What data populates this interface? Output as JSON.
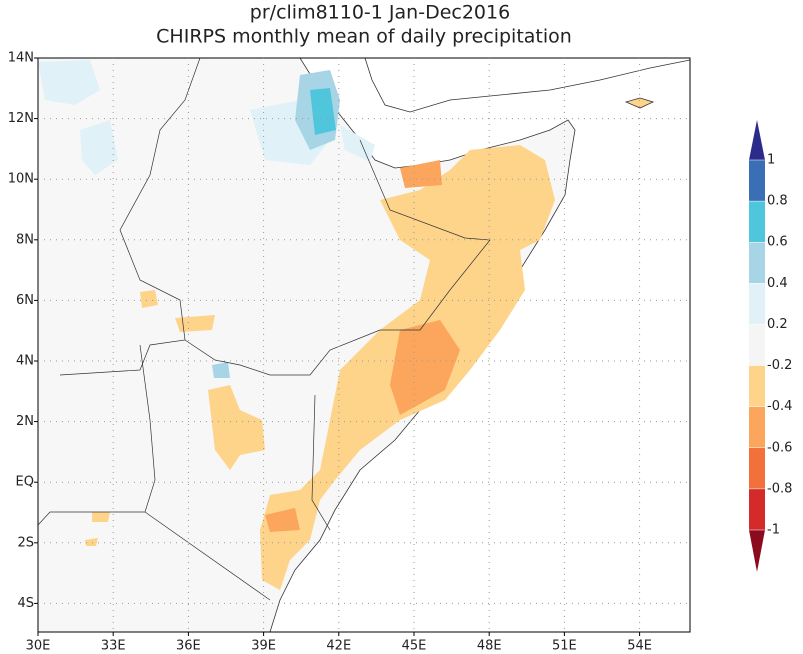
{
  "title": [
    "pr/clim8110-1 Jan-Dec2016",
    "CHIRPS monthly mean of daily precipitation"
  ],
  "map": {
    "x_ticks": [
      "30E",
      "33E",
      "36E",
      "39E",
      "42E",
      "45E",
      "48E",
      "51E",
      "54E"
    ],
    "y_ticks": [
      "14N",
      "12N",
      "10N",
      "8N",
      "6N",
      "4N",
      "2N",
      "EQ",
      "2S",
      "4S"
    ]
  },
  "colorbar": {
    "levels": [
      1,
      0.8,
      0.6,
      0.4,
      0.2,
      -0.2,
      -0.4,
      -0.6,
      -0.8,
      -1
    ],
    "colors": [
      "#2b2b8c",
      "#3b6fb5",
      "#4fc6dc",
      "#a7d5e6",
      "#e0f1f8",
      "#f5f5f5",
      "#fdd48a",
      "#fca55c",
      "#f2703c",
      "#d42a2a",
      "#8c0a1e"
    ]
  }
}
